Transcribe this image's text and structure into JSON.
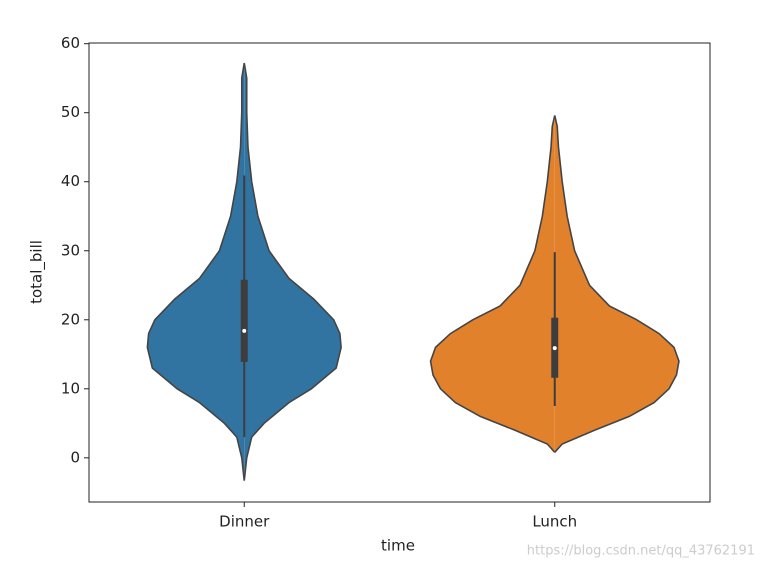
{
  "chart_data": {
    "type": "violin",
    "xlabel": "time",
    "ylabel": "total_bill",
    "categories": [
      "Dinner",
      "Lunch"
    ],
    "series": [
      {
        "name": "Dinner",
        "color": "#3274a1",
        "box": {
          "whislo": 3.0,
          "q1": 13.9,
          "median": 18.4,
          "q3": 25.8,
          "whishi": 40.9
        },
        "density": {
          "y": [
            -3.3,
            0,
            3,
            5,
            8,
            10,
            13,
            16,
            18,
            20,
            23,
            26,
            30,
            35,
            40,
            45,
            50,
            55,
            57.2
          ],
          "width": [
            0,
            0.02,
            0.06,
            0.16,
            0.36,
            0.54,
            0.74,
            0.78,
            0.77,
            0.72,
            0.56,
            0.36,
            0.2,
            0.11,
            0.06,
            0.03,
            0.02,
            0.02,
            0
          ]
        }
      },
      {
        "name": "Lunch",
        "color": "#e1812c",
        "box": {
          "whislo": 7.5,
          "q1": 11.6,
          "median": 15.9,
          "q3": 20.3,
          "whishi": 29.8
        },
        "density": {
          "y": [
            0.8,
            2,
            4,
            6,
            8,
            10,
            12,
            14,
            16,
            18,
            20,
            22,
            25,
            30,
            35,
            40,
            45,
            48,
            49.6
          ],
          "width": [
            0,
            0.06,
            0.32,
            0.6,
            0.8,
            0.92,
            0.98,
            1,
            0.96,
            0.84,
            0.66,
            0.44,
            0.28,
            0.16,
            0.1,
            0.06,
            0.03,
            0.02,
            0
          ]
        }
      }
    ],
    "ylim": [
      -6.4,
      60.1
    ],
    "yticks": [
      0,
      10,
      20,
      30,
      40,
      50,
      60
    ],
    "grid": false,
    "watermark": "https://blog.csdn.net/qq_43762191"
  }
}
